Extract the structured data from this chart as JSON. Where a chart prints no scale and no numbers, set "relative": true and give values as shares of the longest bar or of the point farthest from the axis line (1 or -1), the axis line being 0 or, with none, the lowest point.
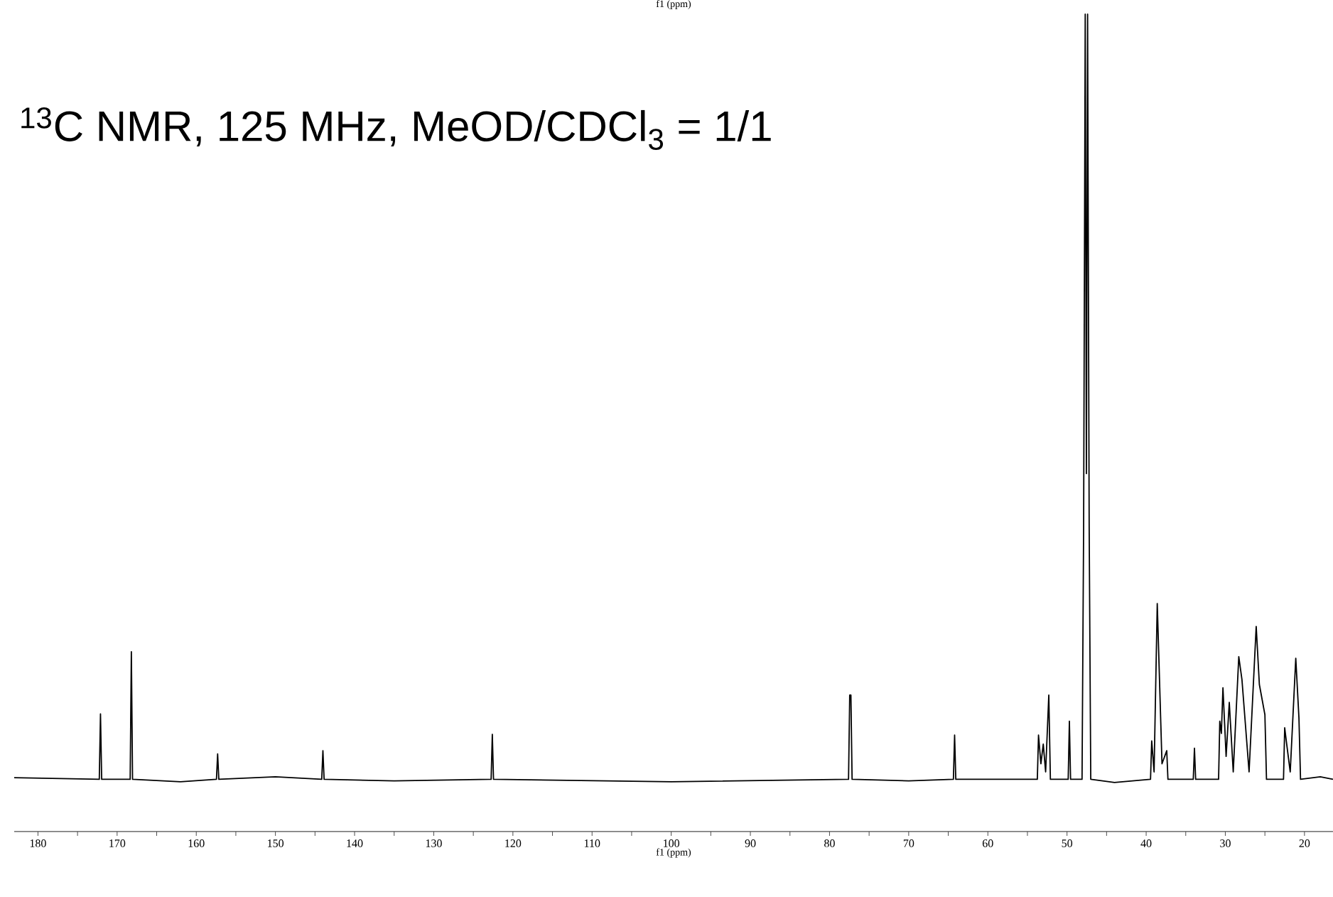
{
  "chart_data": {
    "type": "line",
    "relative": true,
    "title": "$^{13}$C NMR, 125 MHz, MeOD/CDCl$_{3}$ = 1/1",
    "xlabel": "f1 (ppm)",
    "annotations": [
      "f1 (ppm)"
    ],
    "xlim": [
      183.0,
      16.4
    ],
    "xticks": [
      180,
      170,
      160,
      150,
      140,
      130,
      120,
      110,
      100,
      90,
      80,
      70,
      60,
      50,
      40,
      30,
      20
    ],
    "series": [
      {
        "color": "#000000",
        "x": [
          183.0,
          172.25,
          172.1,
          171.95,
          168.35,
          168.2,
          168.05,
          162,
          157.45,
          157.3,
          157.15,
          150,
          144.15,
          144.0,
          143.85,
          135,
          122.75,
          122.6,
          122.45,
          100,
          77.6,
          77.45,
          77.3,
          77.15,
          70,
          64.35,
          64.2,
          64.05,
          53.75,
          53.6,
          53.3,
          53.0,
          52.7,
          52.3,
          52.1,
          49.85,
          49.7,
          49.55,
          48.1,
          47.9,
          47.7,
          47.55,
          47.4,
          47.2,
          47.0,
          44,
          39.45,
          39.3,
          39.0,
          38.6,
          38.0,
          37.4,
          37.25,
          34.05,
          33.9,
          33.75,
          30.85,
          30.7,
          30.5,
          30.3,
          29.9,
          29.5,
          29.0,
          28.3,
          27.9,
          27.0,
          26.1,
          25.7,
          25.0,
          24.8,
          22.65,
          22.5,
          22.3,
          21.8,
          21.1,
          20.7,
          20.5,
          18,
          16.4
        ],
        "values": [
          0.066,
          0.064,
          0.144,
          0.064,
          0.064,
          0.22,
          0.064,
          0.061,
          0.064,
          0.095,
          0.064,
          0.067,
          0.064,
          0.099,
          0.064,
          0.062,
          0.064,
          0.119,
          0.064,
          0.061,
          0.064,
          0.167,
          0.167,
          0.064,
          0.062,
          0.064,
          0.118,
          0.064,
          0.064,
          0.118,
          0.083,
          0.107,
          0.073,
          0.167,
          0.064,
          0.064,
          0.135,
          0.064,
          0.064,
          0.373,
          1.0,
          0.438,
          1.0,
          0.373,
          0.064,
          0.06,
          0.064,
          0.111,
          0.073,
          0.279,
          0.083,
          0.099,
          0.064,
          0.064,
          0.102,
          0.064,
          0.064,
          0.135,
          0.12,
          0.176,
          0.092,
          0.158,
          0.073,
          0.214,
          0.186,
          0.073,
          0.251,
          0.18,
          0.143,
          0.064,
          0.064,
          0.127,
          0.111,
          0.073,
          0.212,
          0.139,
          0.064,
          0.067,
          0.064
        ]
      }
    ]
  }
}
